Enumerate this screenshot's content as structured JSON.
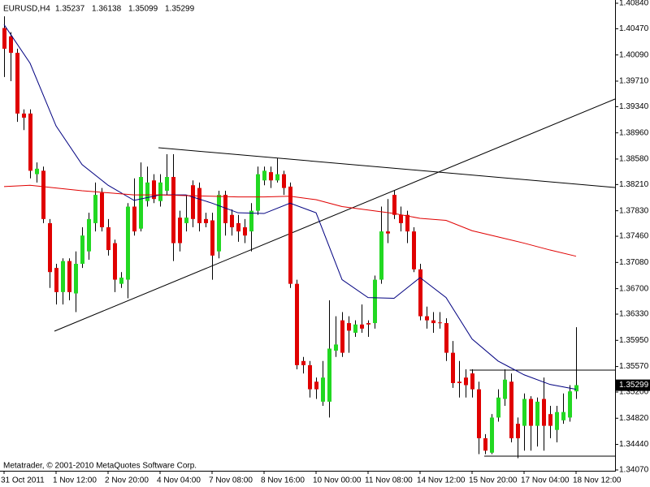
{
  "chart_data": {
    "type": "candlestick",
    "symbol": "EURUSD,H4",
    "header_values": [
      1.35237,
      1.36138,
      1.35099,
      1.35299
    ],
    "watermark": "Metatrader, © 2001-2010 MetaQuotes Software Corp.",
    "last_price": 1.35299,
    "up_color": "#22d822",
    "down_color": "#e00000",
    "categories": [
      "31 Oct 2011",
      null,
      null,
      null,
      null,
      null,
      null,
      null,
      "1 Nov 12:00",
      null,
      null,
      null,
      null,
      null,
      null,
      null,
      "2 Nov 20:00",
      null,
      null,
      null,
      null,
      null,
      null,
      null,
      "4 Nov 04:00",
      null,
      null,
      null,
      null,
      null,
      null,
      null,
      "7 Nov 08:00",
      null,
      null,
      null,
      null,
      null,
      null,
      null,
      "8 Nov 16:00",
      null,
      null,
      null,
      null,
      null,
      null,
      null,
      "10 Nov 00:00",
      null,
      null,
      null,
      null,
      null,
      null,
      null,
      "11 Nov 08:00",
      null,
      null,
      null,
      null,
      null,
      null,
      null,
      "14 Nov 12:00",
      null,
      null,
      null,
      null,
      null,
      null,
      null,
      "15 Nov 20:00",
      null,
      null,
      null,
      null,
      null,
      null,
      null,
      "17 Nov 04:00",
      null,
      null,
      null,
      null,
      null,
      null,
      null,
      "18 Nov 12:00"
    ],
    "open": [
      1.4048,
      1.4036,
      1.4012,
      1.3924,
      1.3924,
      1.3836,
      1.3841,
      1.3765,
      1.37,
      1.3665,
      1.371,
      1.3663,
      1.3706,
      1.3724,
      1.3765,
      1.3809,
      1.3759,
      1.3736,
      1.3677,
      1.3683,
      1.3789,
      1.3757,
      1.3797,
      1.3827,
      1.3797,
      1.3812,
      1.3832,
      1.3773,
      1.3765,
      1.382,
      1.3816,
      1.3771,
      1.3769,
      1.3724,
      1.3806,
      1.3777,
      1.3765,
      1.3759,
      1.3753,
      1.3783,
      1.3827,
      1.3839,
      1.3827,
      1.3836,
      1.3818,
      1.3677,
      1.3565,
      1.3559,
      1.3535,
      1.3506,
      1.3506,
      1.358,
      1.3624,
      1.362,
      1.3606,
      1.3618,
      1.362,
      1.362,
      1.3683,
      1.3753,
      1.3806,
      1.3777,
      1.3777,
      1.3753,
      1.3698,
      1.363,
      1.3624,
      1.3621,
      1.362,
      1.3577,
      1.3535,
      1.3541,
      1.3547,
      1.3524,
      1.3453,
      1.3432,
      1.3483,
      1.351,
      1.3535,
      1.3474,
      1.3471,
      1.351,
      1.3471,
      1.351,
      1.3488,
      1.3465,
      1.3479,
      1.3483,
      1.3521
    ],
    "high": [
      1.4065,
      1.4042,
      1.4018,
      1.393,
      1.393,
      1.3853,
      1.3847,
      1.3771,
      1.3706,
      1.3714,
      1.3714,
      1.3724,
      1.3759,
      1.378,
      1.3824,
      1.3816,
      1.3771,
      1.3741,
      1.3694,
      1.3794,
      1.383,
      1.3853,
      1.3847,
      1.3836,
      1.3836,
      1.3865,
      1.3865,
      1.3783,
      1.3806,
      1.3827,
      1.3824,
      1.378,
      1.378,
      1.3812,
      1.3812,
      1.3785,
      1.3777,
      1.3771,
      1.3794,
      1.3847,
      1.3847,
      1.3847,
      1.3859,
      1.3841,
      1.3824,
      1.3683,
      1.3571,
      1.3565,
      1.3541,
      1.3565,
      1.3653,
      1.363,
      1.3636,
      1.363,
      1.3624,
      1.3647,
      1.3624,
      1.3689,
      1.3789,
      1.38,
      1.3812,
      1.3789,
      1.3783,
      1.3759,
      1.3706,
      1.3644,
      1.3636,
      1.3636,
      1.3627,
      1.3594,
      1.3565,
      1.3553,
      1.3553,
      1.3535,
      1.3459,
      1.3488,
      1.3524,
      1.3553,
      1.3547,
      1.3483,
      1.3518,
      1.3514,
      1.3512,
      1.3541,
      1.35,
      1.35,
      1.3518,
      1.353,
      1.3614
    ],
    "low": [
      1.3977,
      1.3971,
      1.3912,
      1.39,
      1.383,
      1.3824,
      1.3765,
      1.3671,
      1.3647,
      1.3647,
      1.3653,
      1.3636,
      1.37,
      1.3712,
      1.3753,
      1.3753,
      1.3718,
      1.3665,
      1.3671,
      1.3656,
      1.3747,
      1.3753,
      1.3789,
      1.3794,
      1.3789,
      1.3806,
      1.371,
      1.3724,
      1.3753,
      1.3759,
      1.3753,
      1.3759,
      1.3683,
      1.3714,
      1.3747,
      1.3747,
      1.3738,
      1.3736,
      1.3724,
      1.3777,
      1.382,
      1.3816,
      1.3824,
      1.3806,
      1.3671,
      1.3553,
      1.3547,
      1.3512,
      1.351,
      1.35,
      1.3483,
      1.3571,
      1.3571,
      1.3577,
      1.36,
      1.3606,
      1.36,
      1.3612,
      1.3677,
      1.3736,
      1.3771,
      1.3753,
      1.3736,
      1.3694,
      1.3624,
      1.3612,
      1.3606,
      1.3612,
      1.3565,
      1.3526,
      1.3512,
      1.3512,
      1.3512,
      1.343,
      1.343,
      1.343,
      1.3477,
      1.35,
      1.3447,
      1.3424,
      1.3435,
      1.3435,
      1.3441,
      1.3435,
      1.3453,
      1.3447,
      1.3474,
      1.3477,
      1.351
    ],
    "close": [
      1.4018,
      1.4012,
      1.3924,
      1.3918,
      1.3841,
      1.3844,
      1.3771,
      1.3694,
      1.3665,
      1.371,
      1.3665,
      1.3706,
      1.3747,
      1.3771,
      1.3806,
      1.3759,
      1.3726,
      1.3683,
      1.3686,
      1.3789,
      1.3753,
      1.3832,
      1.3824,
      1.38,
      1.3824,
      1.3832,
      1.3736,
      1.3736,
      1.3773,
      1.3771,
      1.3765,
      1.3765,
      1.3718,
      1.3806,
      1.3765,
      1.3759,
      1.3753,
      1.3747,
      1.3783,
      1.3836,
      1.3841,
      1.3827,
      1.3836,
      1.3816,
      1.3677,
      1.3559,
      1.3559,
      1.3524,
      1.3524,
      1.3541,
      1.3583,
      1.3589,
      1.3577,
      1.3609,
      1.3618,
      1.3612,
      1.3618,
      1.3683,
      1.3753,
      1.375,
      1.3777,
      1.3765,
      1.3753,
      1.3698,
      1.363,
      1.3624,
      1.362,
      1.362,
      1.3577,
      1.3533,
      1.3533,
      1.353,
      1.3524,
      1.3453,
      1.3435,
      1.3483,
      1.3512,
      1.3538,
      1.3453,
      1.3453,
      1.351,
      1.3471,
      1.3506,
      1.3471,
      1.3471,
      1.3491,
      1.3491,
      1.3521,
      1.353
    ],
    "lines": [
      {
        "color": "#000080",
        "x": [
          0,
          4,
          8,
          12,
          16,
          20,
          24,
          28,
          32,
          36,
          40,
          44,
          48,
          52,
          56,
          60,
          64,
          68,
          72,
          76,
          80,
          84,
          88
        ],
        "values": [
          1.4053,
          1.3997,
          1.3906,
          1.385,
          1.382,
          1.3798,
          1.3806,
          1.3806,
          1.3794,
          1.378,
          1.3779,
          1.3794,
          1.378,
          1.3683,
          1.3657,
          1.3656,
          1.3686,
          1.3657,
          1.3597,
          1.3565,
          1.3545,
          1.3531,
          1.3524
        ]
      },
      {
        "color": "#e00000",
        "x": [
          0,
          4,
          8,
          12,
          16,
          20,
          24,
          28,
          32,
          36,
          40,
          44,
          48,
          52,
          56,
          60,
          64,
          68,
          72,
          76,
          80,
          84,
          88
        ],
        "values": [
          1.3818,
          1.382,
          1.3816,
          1.3812,
          1.3809,
          1.3806,
          1.3806,
          1.3805,
          1.3804,
          1.3803,
          1.3803,
          1.3804,
          1.3799,
          1.3789,
          1.3784,
          1.3779,
          1.3772,
          1.3769,
          1.3754,
          1.3745,
          1.3736,
          1.3726,
          1.3717
        ]
      }
    ],
    "ylim": [
      1.34058,
      1.40887
    ],
    "yticks": [
      {
        "value": 1.4084,
        "label": "1.40840"
      },
      {
        "value": 1.4047,
        "label": "1.40470"
      },
      {
        "value": 1.4009,
        "label": "1.40090"
      },
      {
        "value": 1.3971,
        "label": "1.39710"
      },
      {
        "value": 1.3934,
        "label": "1.39340"
      },
      {
        "value": 1.3896,
        "label": "1.38960"
      },
      {
        "value": 1.3858,
        "label": "1.38580"
      },
      {
        "value": 1.3821,
        "label": "1.38210"
      },
      {
        "value": 1.3783,
        "label": "1.37830"
      },
      {
        "value": 1.3746,
        "label": "1.37460"
      },
      {
        "value": 1.3708,
        "label": "1.37080"
      },
      {
        "value": 1.367,
        "label": "1.36700"
      },
      {
        "value": 1.3633,
        "label": "1.36330"
      },
      {
        "value": 1.3595,
        "label": "1.35950"
      },
      {
        "value": 1.3557,
        "label": "1.35570"
      },
      {
        "value": 1.352,
        "label": "1.35200"
      },
      {
        "value": 1.3482,
        "label": "1.34820"
      },
      {
        "value": 1.3444,
        "label": "1.34440"
      },
      {
        "value": 1.3407,
        "label": "1.34070"
      }
    ]
  }
}
